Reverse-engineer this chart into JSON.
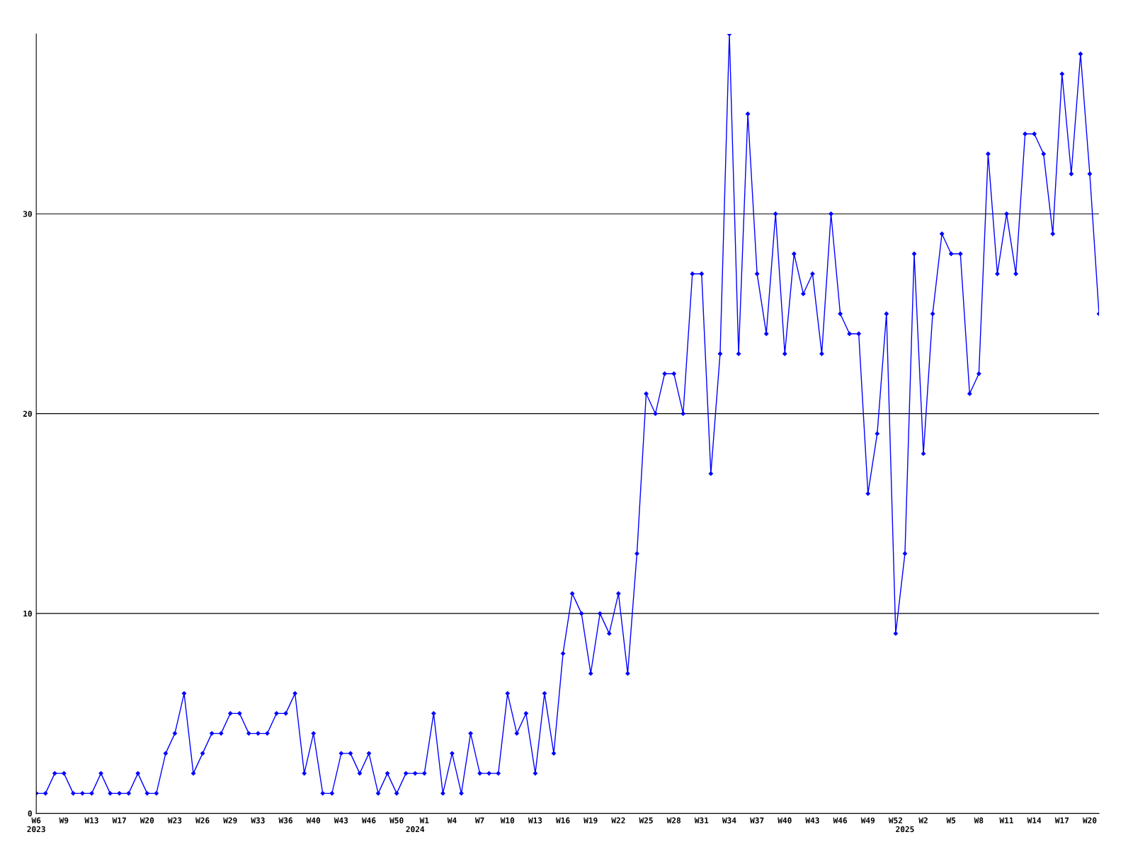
{
  "chart_data": {
    "type": "line",
    "categories": [
      "W6\n2023",
      null,
      null,
      "W9",
      null,
      null,
      "W13",
      null,
      null,
      "W17",
      null,
      null,
      "W20",
      null,
      null,
      "W23",
      null,
      null,
      "W26",
      null,
      null,
      "W29",
      null,
      null,
      "W33",
      null,
      null,
      "W36",
      null,
      null,
      "W40",
      null,
      null,
      "W43",
      null,
      null,
      "W46",
      null,
      null,
      "W50",
      null,
      "\n2024",
      "W1",
      null,
      null,
      "W4",
      null,
      null,
      "W7",
      null,
      null,
      "W10",
      null,
      null,
      "W13",
      null,
      null,
      "W16",
      null,
      null,
      "W19",
      null,
      null,
      "W22",
      null,
      null,
      "W25",
      null,
      null,
      "W28",
      null,
      null,
      "W31",
      null,
      null,
      "W34",
      null,
      null,
      "W37",
      null,
      null,
      "W40",
      null,
      null,
      "W43",
      null,
      null,
      "W46",
      null,
      null,
      "W49",
      null,
      null,
      "W52",
      "\n2025",
      null,
      "W2",
      null,
      null,
      "W5",
      null,
      null,
      "W8",
      null,
      null,
      "W11",
      null,
      null,
      "W14",
      null,
      null,
      "W17",
      null,
      null,
      "W20",
      null
    ],
    "series": [
      {
        "color": "#0000ff",
        "values": [
          1,
          1,
          2,
          2,
          1,
          1,
          1,
          2,
          1,
          1,
          1,
          2,
          1,
          1,
          3,
          4,
          6,
          2,
          3,
          4,
          4,
          5,
          5,
          4,
          4,
          4,
          5,
          5,
          6,
          2,
          4,
          1,
          1,
          3,
          3,
          2,
          3,
          1,
          2,
          1,
          2,
          2,
          2,
          5,
          1,
          3,
          1,
          4,
          2,
          2,
          2,
          6,
          4,
          5,
          2,
          6,
          3,
          8,
          11,
          10,
          7,
          10,
          9,
          11,
          7,
          13,
          21,
          20,
          22,
          22,
          20,
          27,
          27,
          17,
          23,
          39,
          23,
          35,
          27,
          24,
          30,
          23,
          28,
          26,
          27,
          23,
          30,
          25,
          24,
          24,
          16,
          19,
          25,
          9,
          13,
          28,
          18,
          25,
          29,
          28,
          28,
          21,
          22,
          33,
          27,
          30,
          27,
          34,
          34,
          33,
          29,
          37,
          32,
          38,
          32,
          25
        ]
      }
    ],
    "ylim": [
      0,
      39
    ],
    "yticks": [
      0,
      10,
      20,
      30
    ],
    "grid": "y",
    "marker": "diamond",
    "line_style": "solid"
  }
}
